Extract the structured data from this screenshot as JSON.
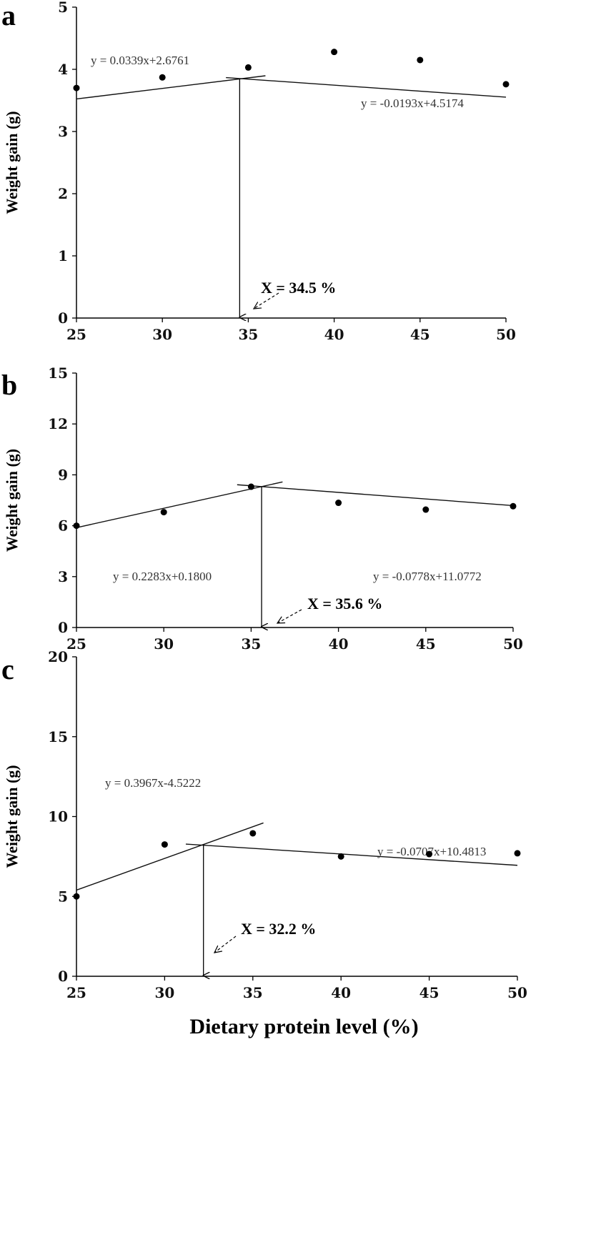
{
  "chart_data": [
    {
      "panel": "a",
      "type": "scatter",
      "xlabel": "",
      "ylabel": "Weight gain (g)",
      "xlim": [
        25,
        50
      ],
      "ylim": [
        0,
        5
      ],
      "xticks": [
        "25",
        "30",
        "35",
        "40",
        "45",
        "50"
      ],
      "yticks": [
        "0",
        "1",
        "2",
        "3",
        "4",
        "5"
      ],
      "points": [
        {
          "x": 25,
          "y": 3.7
        },
        {
          "x": 30,
          "y": 3.87
        },
        {
          "x": 35,
          "y": 4.03
        },
        {
          "x": 40,
          "y": 4.28
        },
        {
          "x": 45,
          "y": 4.15
        },
        {
          "x": 50,
          "y": 3.76
        }
      ],
      "fit_lines": [
        {
          "slope": 0.0339,
          "intercept": 2.6761,
          "x_range": [
            25,
            36.0
          ],
          "equation": "y = 0.0339x+2.6761"
        },
        {
          "slope": -0.0193,
          "intercept": 4.5174,
          "x_range": [
            33.7,
            50
          ],
          "equation": "y = -0.0193x+4.5174"
        }
      ],
      "breakpoint": {
        "x": 34.5,
        "label": "X = 34.5 %"
      }
    },
    {
      "panel": "b",
      "type": "scatter",
      "xlabel": "",
      "ylabel": "Weight gain (g)",
      "xlim": [
        25,
        50
      ],
      "ylim": [
        0,
        15
      ],
      "xticks": [
        "25",
        "30",
        "35",
        "40",
        "45",
        "50"
      ],
      "yticks": [
        "0",
        "3",
        "6",
        "9",
        "12",
        "15"
      ],
      "points": [
        {
          "x": 25,
          "y": 6.0
        },
        {
          "x": 30,
          "y": 6.8
        },
        {
          "x": 35,
          "y": 8.3
        },
        {
          "x": 40,
          "y": 7.35
        },
        {
          "x": 45,
          "y": 6.95
        },
        {
          "x": 50,
          "y": 7.15
        }
      ],
      "fit_lines": [
        {
          "slope": 0.2283,
          "intercept": 0.18,
          "x_range": [
            25,
            36.8
          ],
          "equation": "y = 0.2283x+0.1800"
        },
        {
          "slope": -0.0778,
          "intercept": 11.0772,
          "x_range": [
            34.2,
            50
          ],
          "equation": "y = -0.0778x+11.0772"
        }
      ],
      "breakpoint": {
        "x": 35.6,
        "label": "X = 35.6 %"
      }
    },
    {
      "panel": "c",
      "type": "scatter",
      "xlabel": "Dietary protein level (%)",
      "ylabel": "Weight gain (g)",
      "xlim": [
        25,
        50
      ],
      "ylim": [
        0,
        20
      ],
      "xticks": [
        "25",
        "30",
        "35",
        "40",
        "45",
        "50"
      ],
      "yticks": [
        "0",
        "5",
        "10",
        "15",
        "20"
      ],
      "points": [
        {
          "x": 25,
          "y": 5.0
        },
        {
          "x": 30,
          "y": 8.25
        },
        {
          "x": 35,
          "y": 8.95
        },
        {
          "x": 40,
          "y": 7.5
        },
        {
          "x": 45,
          "y": 7.65
        },
        {
          "x": 50,
          "y": 7.7
        }
      ],
      "fit_lines": [
        {
          "slope": 0.3967,
          "intercept": -4.5222,
          "x_range": [
            25,
            35.6
          ],
          "equation": "y = 0.3967x-4.5222"
        },
        {
          "slope": -0.0707,
          "intercept": 10.4813,
          "x_range": [
            31.2,
            50
          ],
          "equation": "y = -0.0707x+10.4813"
        }
      ],
      "breakpoint": {
        "x": 32.2,
        "label": "X = 32.2 %"
      }
    }
  ]
}
